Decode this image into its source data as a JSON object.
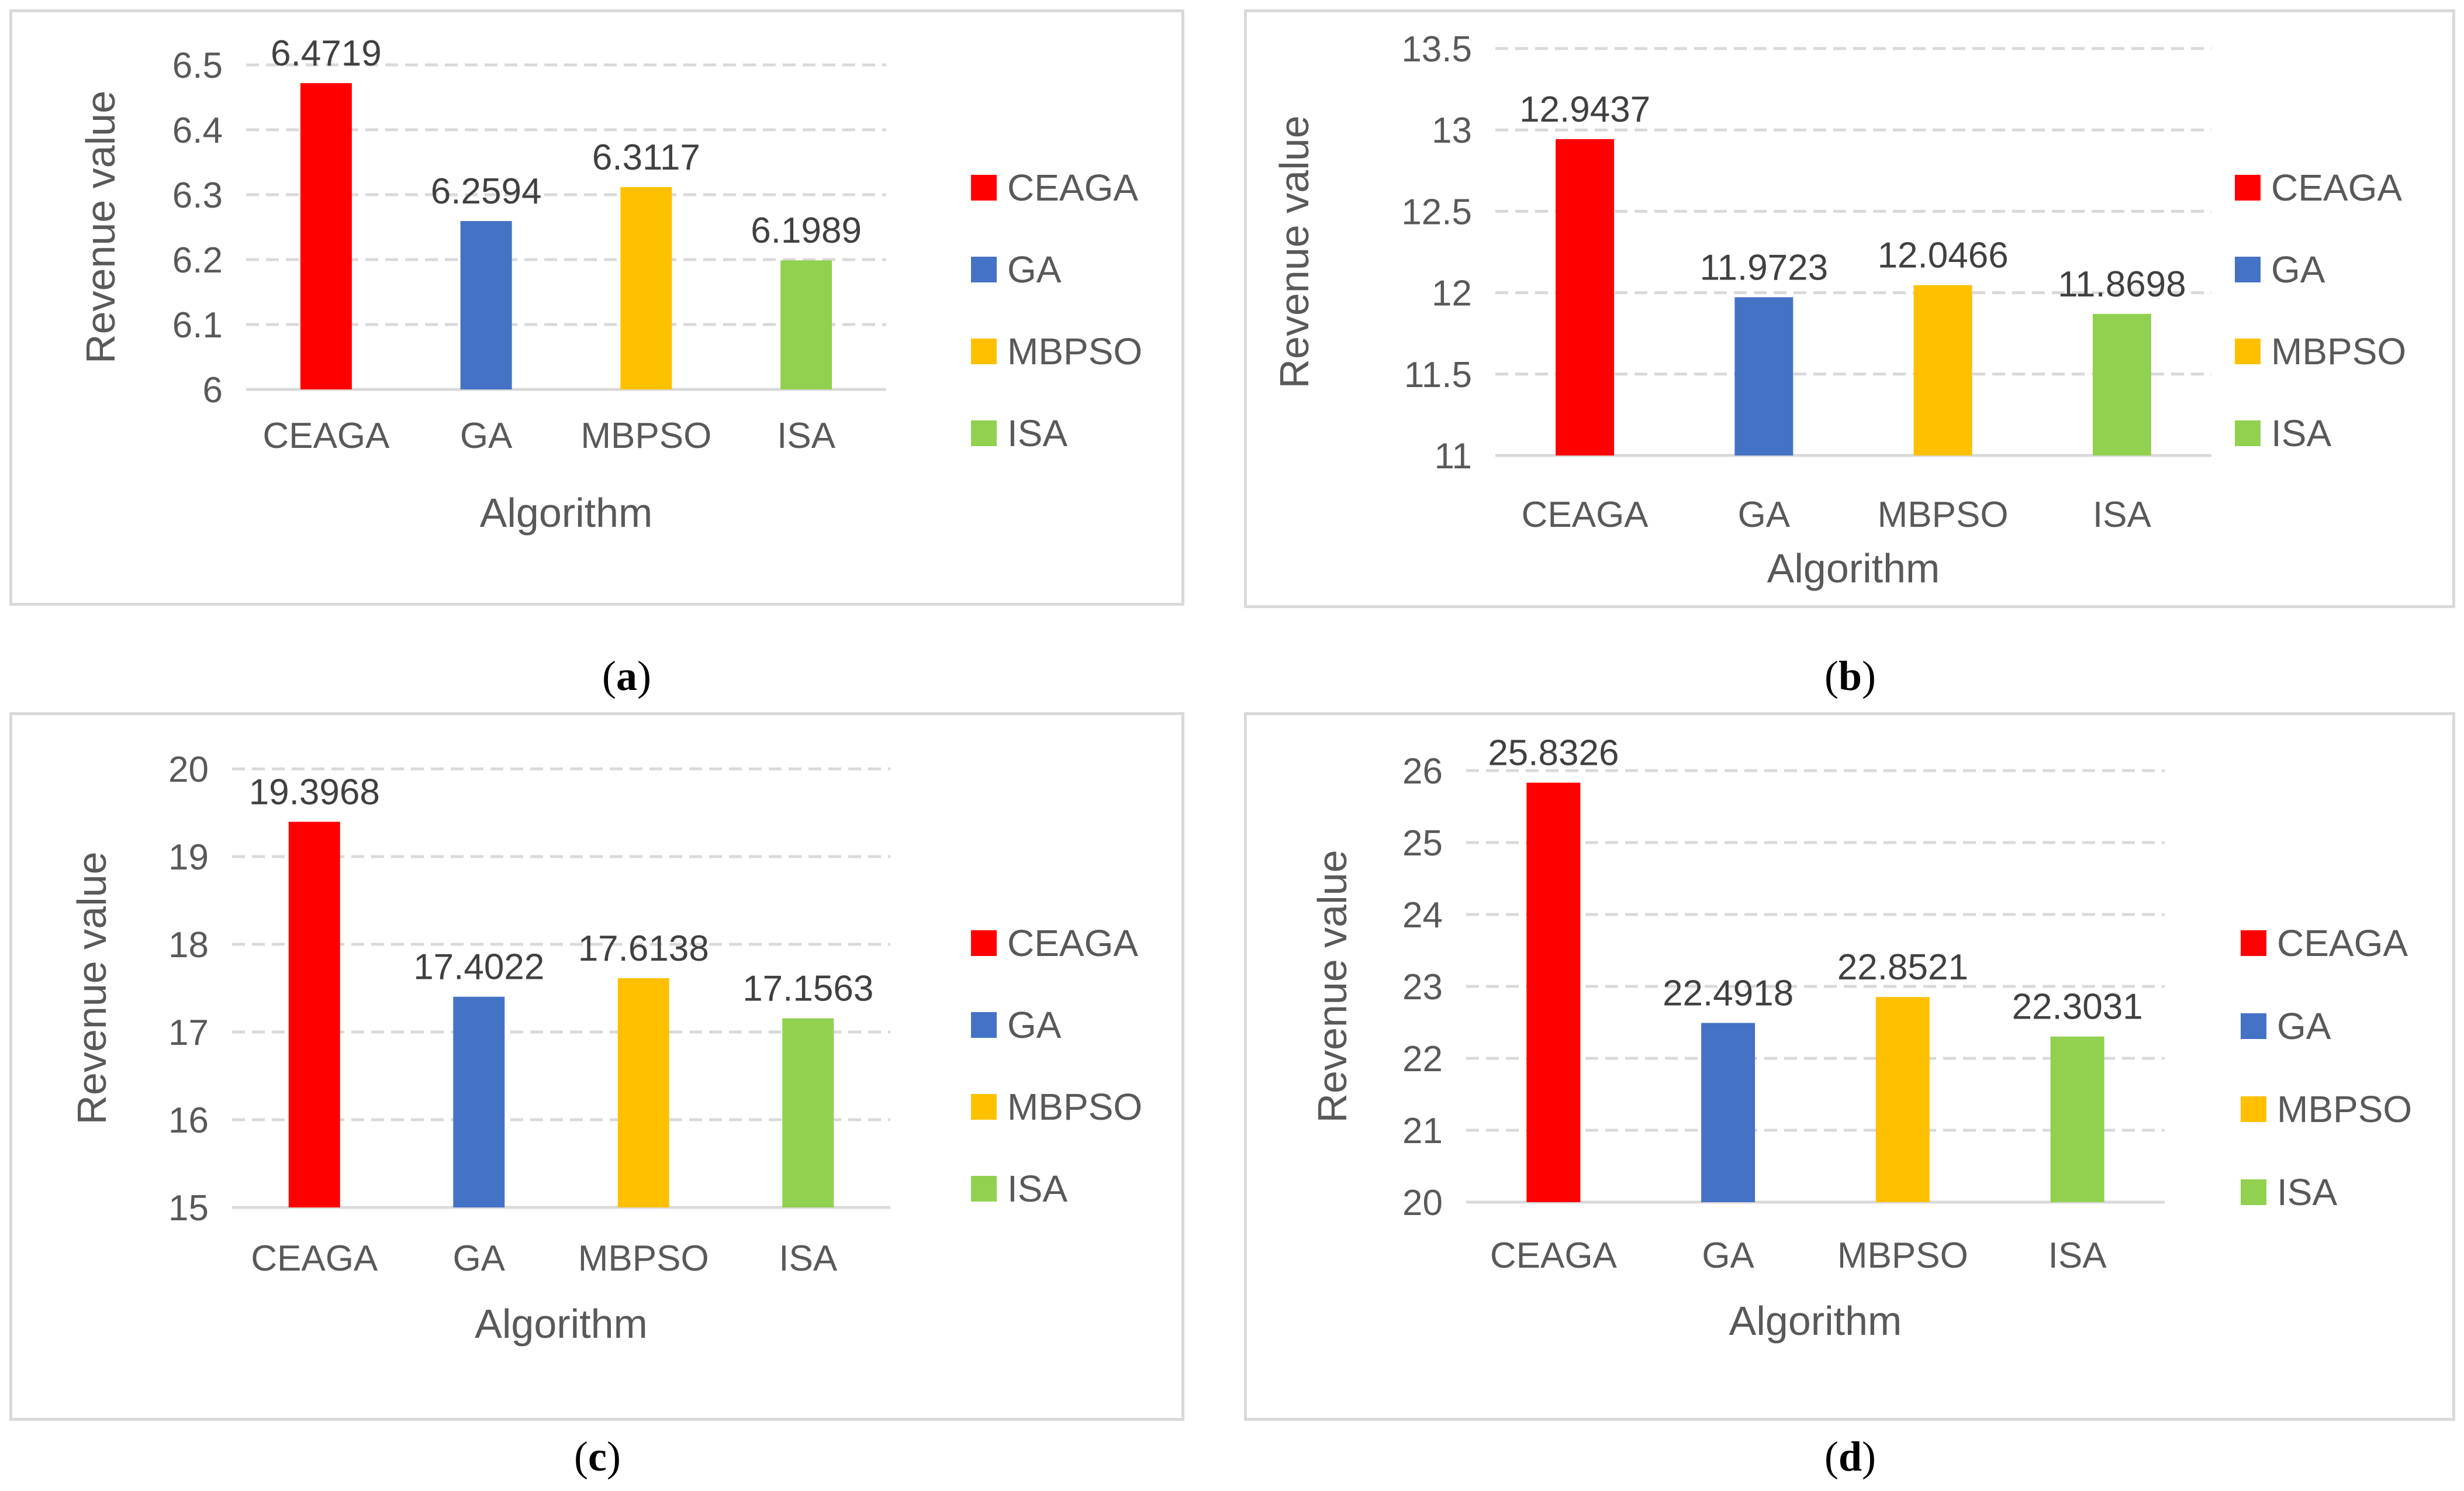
{
  "chart_data": [
    {
      "type": "bar",
      "panel": "a",
      "caption_letter": "a",
      "categories": [
        "CEAGA",
        "GA",
        "MBPSO",
        "ISA"
      ],
      "values": [
        6.4719,
        6.2594,
        6.3117,
        6.1989
      ],
      "data_labels": [
        "6.4719",
        "6.2594",
        "6.3117",
        "6.1989"
      ],
      "xlabel": "Algorithm",
      "ylabel": "Revenue value",
      "ylim": [
        6,
        6.5
      ],
      "yticks": [
        "6",
        "6.1",
        "6.2",
        "6.3",
        "6.4",
        "6.5"
      ],
      "legend": [
        "CEAGA",
        "GA",
        "MBPSO",
        "ISA"
      ],
      "legend_position": "right",
      "grid": true
    },
    {
      "type": "bar",
      "panel": "b",
      "caption_letter": "b",
      "categories": [
        "CEAGA",
        "GA",
        "MBPSO",
        "ISA"
      ],
      "values": [
        12.9437,
        11.9723,
        12.0466,
        11.8698
      ],
      "data_labels": [
        "12.9437",
        "11.9723",
        "12.0466",
        "11.8698"
      ],
      "xlabel": "Algorithm",
      "ylabel": "Revenue value",
      "ylim": [
        11,
        13.5
      ],
      "yticks": [
        "11",
        "11.5",
        "12",
        "12.5",
        "13",
        "13.5"
      ],
      "legend": [
        "CEAGA",
        "GA",
        "MBPSO",
        "ISA"
      ],
      "legend_position": "right",
      "grid": true
    },
    {
      "type": "bar",
      "panel": "c",
      "caption_letter": "c",
      "categories": [
        "CEAGA",
        "GA",
        "MBPSO",
        "ISA"
      ],
      "values": [
        19.3968,
        17.4022,
        17.6138,
        17.1563
      ],
      "data_labels": [
        "19.3968",
        "17.4022",
        "17.6138",
        "17.1563"
      ],
      "xlabel": "Algorithm",
      "ylabel": "Revenue value",
      "ylim": [
        15,
        20
      ],
      "yticks": [
        "15",
        "16",
        "17",
        "18",
        "19",
        "20"
      ],
      "legend": [
        "CEAGA",
        "GA",
        "MBPSO",
        "ISA"
      ],
      "legend_position": "right",
      "grid": true
    },
    {
      "type": "bar",
      "panel": "d",
      "caption_letter": "d",
      "categories": [
        "CEAGA",
        "GA",
        "MBPSO",
        "ISA"
      ],
      "values": [
        25.8326,
        22.4918,
        22.8521,
        22.3031
      ],
      "data_labels": [
        "25.8326",
        "22.4918",
        "22.8521",
        "22.3031"
      ],
      "xlabel": "Algorithm",
      "ylabel": "Revenue value",
      "ylim": [
        20,
        26
      ],
      "yticks": [
        "20",
        "21",
        "22",
        "23",
        "24",
        "25",
        "26"
      ],
      "legend": [
        "CEAGA",
        "GA",
        "MBPSO",
        "ISA"
      ],
      "legend_position": "right",
      "grid": true
    }
  ],
  "colors": {
    "CEAGA": "#ff0000",
    "GA": "#4472c4",
    "MBPSO": "#ffc000",
    "ISA": "#92d050",
    "grid": "#d9d9d9",
    "text": "#404040",
    "axis_text": "#595959"
  }
}
